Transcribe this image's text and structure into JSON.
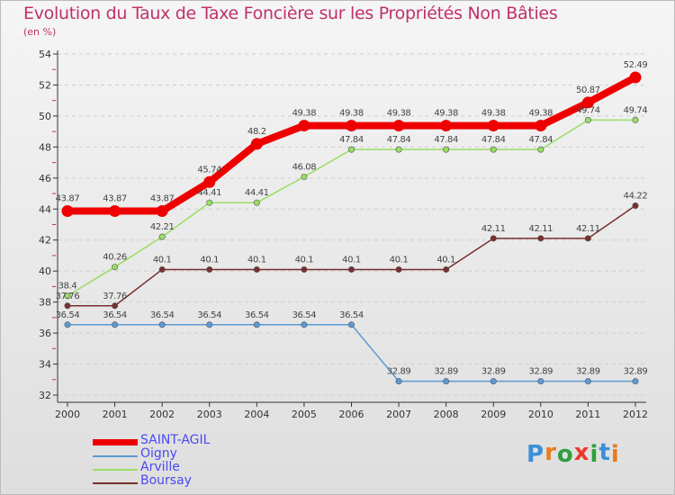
{
  "title": "Evolution du Taux de Taxe Foncière sur les Propriétés Non Bâties",
  "subtitle": "(en %)",
  "logo": {
    "text": "Proxiti",
    "letters": [
      "P",
      "r",
      "o",
      "x",
      "i",
      "t",
      "i"
    ],
    "colors": [
      "#3a8fd8",
      "#e87c1e",
      "#2e9e3e",
      "#e8392b",
      "#2e9e3e",
      "#3a8fd8",
      "#e87c1e"
    ]
  },
  "chart_data": {
    "type": "line",
    "title": "Evolution du Taux de Taxe Foncière sur les Propriétés Non Bâties",
    "ylabel": "(en %)",
    "xlabel": "",
    "ylim": [
      32,
      54
    ],
    "yticks": [
      "32",
      "34",
      "36",
      "38",
      "40",
      "42",
      "44",
      "46",
      "48",
      "50",
      "52",
      "54"
    ],
    "ytick_values": [
      32,
      34,
      36,
      38,
      40,
      42,
      44,
      46,
      48,
      50,
      52,
      54
    ],
    "categories": [
      "2000",
      "2001",
      "2002",
      "2003",
      "2004",
      "2005",
      "2006",
      "2007",
      "2008",
      "2009",
      "2010",
      "2011",
      "2012"
    ],
    "grid": "horizontal",
    "legend_position": "bottom-left",
    "series": [
      {
        "name": "SAINT-AGIL",
        "color": "#ee0000",
        "values": [
          43.87,
          43.87,
          43.87,
          45.74,
          48.2,
          49.38,
          49.38,
          49.38,
          49.38,
          49.38,
          49.38,
          50.87,
          52.49
        ],
        "labels": [
          "43.87",
          "43.87",
          "43.87",
          "45.74",
          "48.2",
          "49.38",
          "49.38",
          "49.38",
          "49.38",
          "49.38",
          "49.38",
          "50.87",
          "52.49"
        ]
      },
      {
        "name": "Oigny",
        "color": "#5b9bd5",
        "values": [
          36.54,
          36.54,
          36.54,
          36.54,
          36.54,
          36.54,
          36.54,
          32.89,
          32.89,
          32.89,
          32.89,
          32.89,
          32.89
        ],
        "labels": [
          "36.54",
          "36.54",
          "36.54",
          "36.54",
          "36.54",
          "36.54",
          "36.54",
          "32.89",
          "32.89",
          "32.89",
          "32.89",
          "32.89",
          "32.89"
        ]
      },
      {
        "name": "Arville",
        "color": "#99dd66",
        "values": [
          38.4,
          40.26,
          42.21,
          44.41,
          44.41,
          46.08,
          47.84,
          47.84,
          47.84,
          47.84,
          47.84,
          49.74,
          49.74
        ],
        "labels": [
          "38.4",
          "40.26",
          "42.21",
          "44.41",
          "44.41",
          "46.08",
          "47.84",
          "47.84",
          "47.84",
          "47.84",
          "47.84",
          "49.74",
          "49.74"
        ]
      },
      {
        "name": "Boursay",
        "color": "#7a2e2e",
        "values": [
          37.76,
          37.76,
          40.1,
          40.1,
          40.1,
          40.1,
          40.1,
          40.1,
          40.1,
          42.11,
          42.11,
          42.11,
          44.22
        ],
        "labels": [
          "37.76",
          "37.76",
          "40.1",
          "40.1",
          "40.1",
          "40.1",
          "40.1",
          "40.1",
          "40.1",
          "42.11",
          "42.11",
          "42.11",
          "44.22"
        ]
      }
    ]
  }
}
